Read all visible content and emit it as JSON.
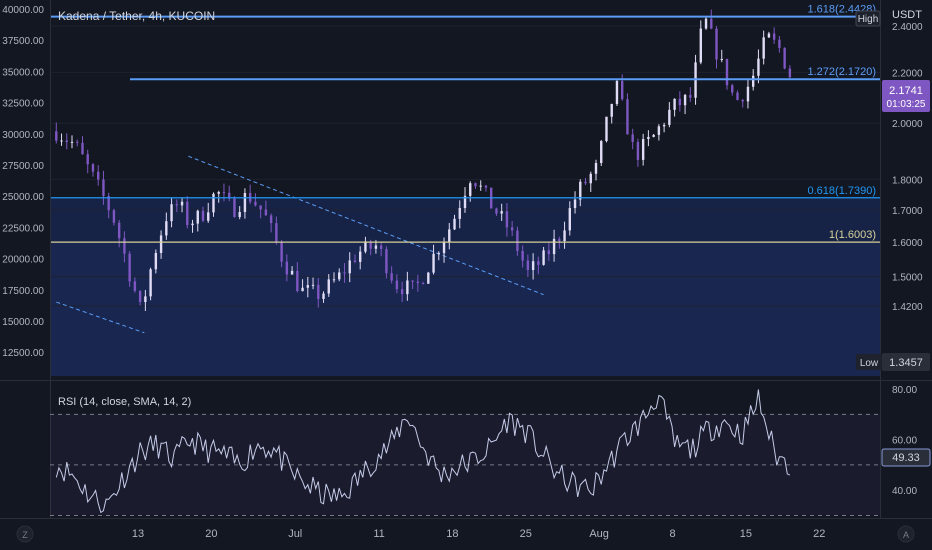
{
  "chart_data": {
    "type": "candlestick",
    "title": "Kadena / Tether, 4h, KUCOIN",
    "left_axis": {
      "ticks": [
        40000.0,
        37500.0,
        35000.0,
        32500.0,
        30000.0,
        27500.0,
        25000.0,
        22500.0,
        20000.0,
        17500.0,
        15000.0,
        12500.0
      ]
    },
    "right_axis": {
      "unit": "USDT",
      "ticks": [
        2.4,
        2.2,
        2.0,
        1.8,
        1.7,
        1.6,
        1.5,
        1.42
      ],
      "scale": "log",
      "range": [
        1.24,
        2.52
      ]
    },
    "x_axis": {
      "labels": [
        "13",
        "20",
        "Jul",
        "11",
        "18",
        "25",
        "Aug",
        "8",
        "15",
        "22"
      ],
      "range_days": [
        -2.8,
        23.6
      ]
    },
    "fib_levels": [
      {
        "label": "1.618(2.4428)",
        "value": 2.4428
      },
      {
        "label": "1.272(2.1720)",
        "value": 2.172
      },
      {
        "label": "0.618(1.7390)",
        "value": 1.739
      },
      {
        "label": "1(1.6003)",
        "value": 1.6003
      }
    ],
    "badges": {
      "high": "High",
      "low": "Low",
      "low_value": "1.3457",
      "last_price": "2.1741",
      "countdown": "01:03:25"
    },
    "price_series_days": [
      -2.6,
      -2.0,
      -1.4,
      -0.8,
      -0.3,
      0.1,
      0.5,
      0.9,
      1.3,
      1.6,
      2.0,
      2.5,
      3.0,
      3.5,
      4.0,
      4.6,
      5.2,
      5.8,
      6.4,
      7.0,
      7.6,
      8.2,
      8.8,
      9.4,
      10.0,
      10.6,
      11.2,
      11.8,
      12.4,
      12.9,
      13.4,
      14.0,
      14.6,
      15.2,
      15.8,
      16.4,
      17.0,
      17.6,
      18.0,
      18.5,
      19.0,
      19.5,
      20.0,
      20.4,
      20.8
    ],
    "price_series_close": [
      1.97,
      1.92,
      1.8,
      1.68,
      1.52,
      1.4,
      1.56,
      1.68,
      1.72,
      1.66,
      1.68,
      1.76,
      1.7,
      1.75,
      1.69,
      1.55,
      1.46,
      1.45,
      1.5,
      1.57,
      1.59,
      1.48,
      1.46,
      1.56,
      1.66,
      1.82,
      1.72,
      1.64,
      1.51,
      1.55,
      1.62,
      1.76,
      1.84,
      2.15,
      1.88,
      1.95,
      2.06,
      2.1,
      2.44,
      2.25,
      2.08,
      2.16,
      2.35,
      2.3,
      2.17
    ],
    "rsi": {
      "title": "RSI (14, close, SMA, 14, 2)",
      "ticks": [
        80.0,
        60.0,
        40.0
      ],
      "range": [
        29,
        82
      ],
      "upper_band": 70,
      "middle_band": 50,
      "lower_band": 30,
      "current": "49.33",
      "series": [
        50,
        46,
        38,
        34,
        45,
        55,
        58,
        52,
        60,
        56,
        54,
        50,
        58,
        56,
        47,
        42,
        38,
        37,
        44,
        52,
        58,
        70,
        56,
        46,
        49,
        52,
        57,
        68,
        64,
        55,
        46,
        42,
        40,
        50,
        60,
        67,
        78,
        58,
        56,
        64,
        67,
        62,
        76,
        54,
        49
      ]
    },
    "footer": {
      "left": "Z",
      "right": "A"
    }
  }
}
